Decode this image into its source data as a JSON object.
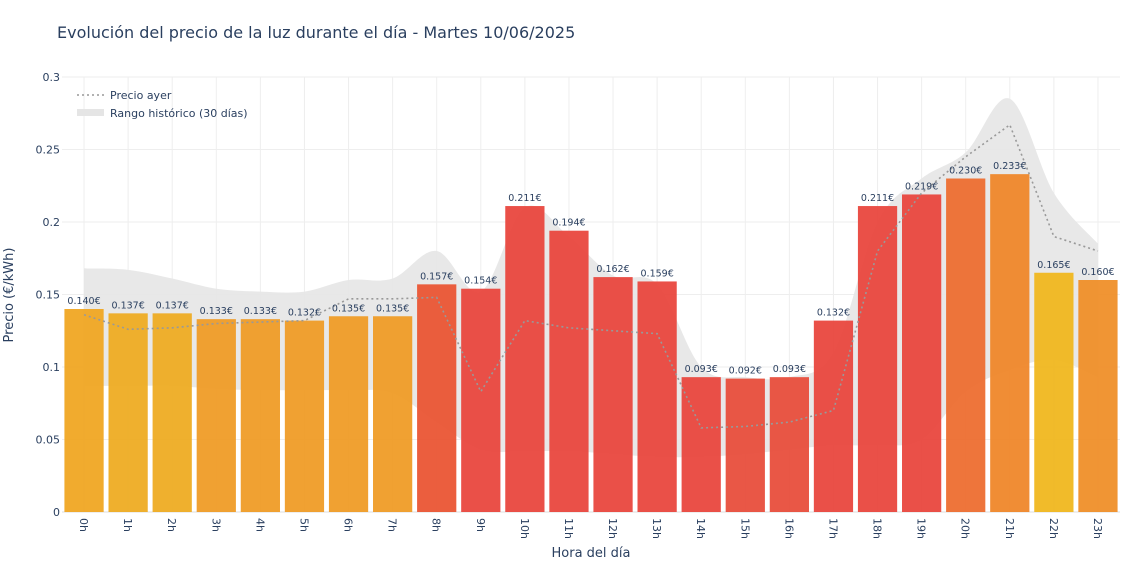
{
  "chart_data": {
    "type": "bar",
    "title": "Evolución del precio de la luz durante el día - Martes 10/06/2025",
    "xlabel": "Hora del día",
    "ylabel": "Precio (€/kWh)",
    "ylim": [
      0,
      0.3
    ],
    "yticks": [
      "0",
      "0.05",
      "0.1",
      "0.15",
      "0.2",
      "0.25",
      "0.3"
    ],
    "grid": true,
    "legend_position": "top-left",
    "categories": [
      "0h",
      "1h",
      "2h",
      "3h",
      "4h",
      "5h",
      "6h",
      "7h",
      "8h",
      "9h",
      "10h",
      "11h",
      "12h",
      "13h",
      "14h",
      "15h",
      "16h",
      "17h",
      "18h",
      "19h",
      "20h",
      "21h",
      "22h",
      "23h"
    ],
    "series": [
      {
        "values": [
          0.14,
          0.137,
          0.137,
          0.133,
          0.133,
          0.132,
          0.135,
          0.135,
          0.157,
          0.154,
          0.211,
          0.194,
          0.162,
          0.159,
          0.093,
          0.092,
          0.093,
          0.132,
          0.211,
          0.219,
          0.23,
          0.233,
          0.165,
          0.16
        ],
        "labels": [
          "0.140€",
          "0.137€",
          "0.137€",
          "0.133€",
          "0.133€",
          "0.132€",
          "0.135€",
          "0.135€",
          "0.157€",
          "0.154€",
          "0.211€",
          "0.194€",
          "0.162€",
          "0.159€",
          "0.093€",
          "0.092€",
          "0.093€",
          "0.132€",
          "0.211€",
          "0.219€",
          "0.230€",
          "0.233€",
          "0.165€",
          "0.160€"
        ],
        "colors": [
          "#f0a51e",
          "#eeaa1e",
          "#eeaa1e",
          "#ef9a22",
          "#ef9a22",
          "#ef9a22",
          "#ef9a22",
          "#ef9a22",
          "#e9522f",
          "#e8433a",
          "#e8433a",
          "#e8433a",
          "#e8433a",
          "#e8433a",
          "#e8433a",
          "#e74a38",
          "#e74a38",
          "#e8433a",
          "#e8433a",
          "#e8433a",
          "#ed6b2c",
          "#ef8426",
          "#f0b61a",
          "#ef8d25"
        ]
      },
      {
        "name": "Precio ayer",
        "style": "dotted",
        "color": "#999999",
        "values": [
          0.136,
          0.126,
          0.127,
          0.13,
          0.131,
          0.132,
          0.147,
          0.147,
          0.148,
          0.083,
          0.132,
          0.127,
          0.125,
          0.123,
          0.058,
          0.059,
          0.062,
          0.07,
          0.18,
          0.22,
          0.245,
          0.267,
          0.19,
          0.18
        ]
      },
      {
        "name": "Rango histórico (30 días)",
        "type": "band",
        "color": "#e5e5e5",
        "upper": [
          0.168,
          0.167,
          0.161,
          0.154,
          0.152,
          0.152,
          0.16,
          0.161,
          0.18,
          0.152,
          0.21,
          0.19,
          0.163,
          0.157,
          0.1,
          0.093,
          0.093,
          0.11,
          0.2,
          0.23,
          0.248,
          0.285,
          0.22,
          0.185
        ],
        "lower": [
          0.087,
          0.087,
          0.087,
          0.085,
          0.084,
          0.084,
          0.084,
          0.082,
          0.062,
          0.043,
          0.042,
          0.042,
          0.04,
          0.038,
          0.038,
          0.04,
          0.043,
          0.046,
          0.046,
          0.05,
          0.083,
          0.098,
          0.105,
          0.093
        ]
      }
    ]
  }
}
